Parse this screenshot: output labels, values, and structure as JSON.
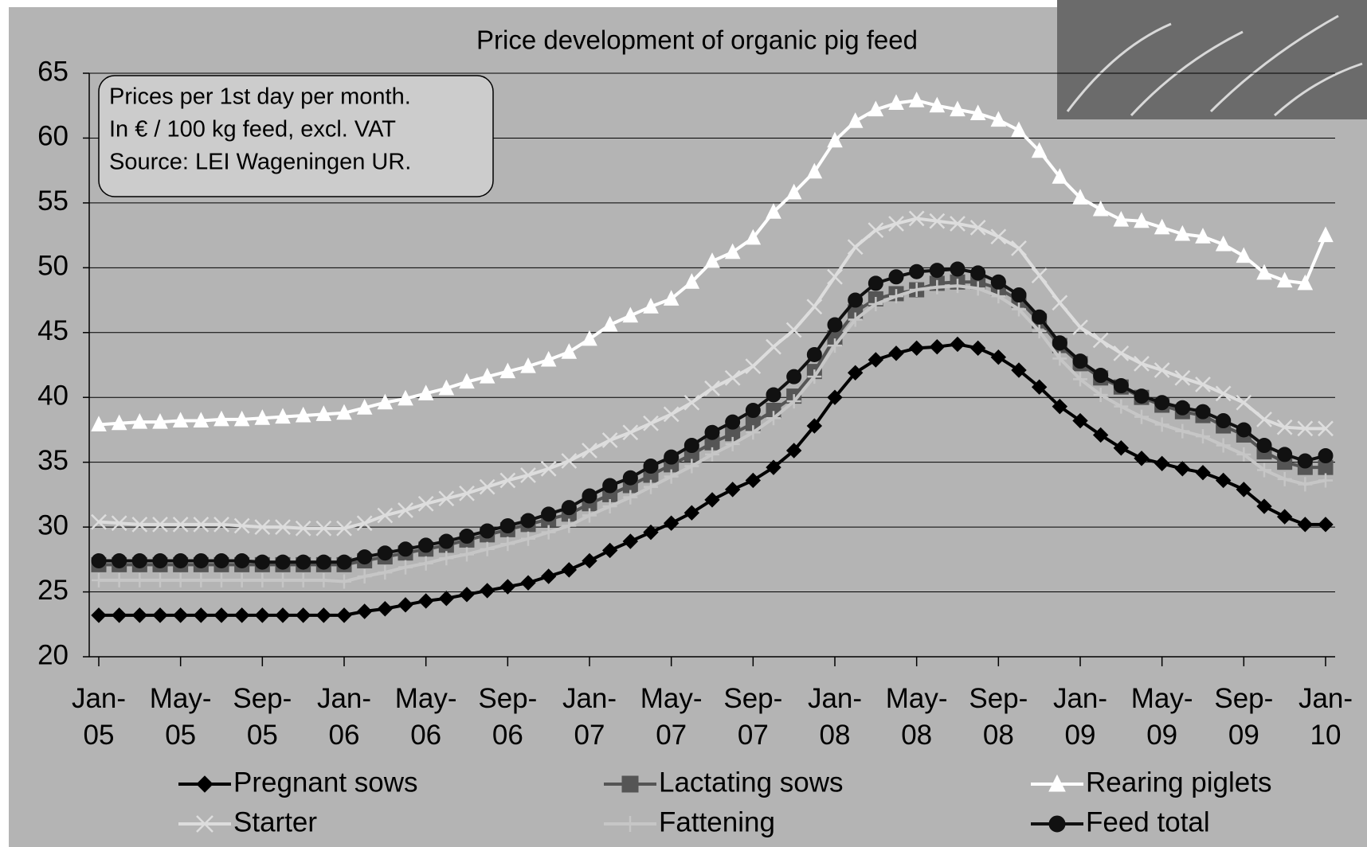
{
  "chart_data": {
    "type": "line",
    "title": "Price development of organic pig feed",
    "note": [
      "Prices per 1st day per month.",
      "In € / 100 kg feed, excl. VAT",
      "Source: LEI Wageningen UR."
    ],
    "categories": [
      "Jan-05",
      null,
      null,
      null,
      "May-05",
      null,
      null,
      null,
      "Sep-05",
      null,
      null,
      null,
      "Jan-06",
      null,
      null,
      null,
      "May-06",
      null,
      null,
      null,
      "Sep-06",
      null,
      null,
      null,
      "Jan-07",
      null,
      null,
      null,
      "May-07",
      null,
      null,
      null,
      "Sep-07",
      null,
      null,
      null,
      "Jan-08",
      null,
      null,
      null,
      "May-08",
      null,
      null,
      null,
      "Sep-08",
      null,
      null,
      null,
      "Jan-09",
      null,
      null,
      null,
      "May-09",
      null,
      null,
      null,
      "Sep-09",
      null,
      null,
      null,
      "Jan-10"
    ],
    "ylim": [
      20,
      65
    ],
    "yticks": [
      20,
      25,
      30,
      35,
      40,
      45,
      50,
      55,
      60,
      65
    ],
    "grid": true,
    "series": [
      {
        "name": "Pregnant sows",
        "color": "#000000",
        "marker": "diamond",
        "values": [
          23.2,
          23.2,
          23.2,
          23.2,
          23.2,
          23.2,
          23.2,
          23.2,
          23.2,
          23.2,
          23.2,
          23.2,
          23.2,
          23.5,
          23.7,
          24.0,
          24.3,
          24.5,
          24.8,
          25.1,
          25.4,
          25.7,
          26.2,
          26.7,
          27.4,
          28.2,
          28.9,
          29.6,
          30.3,
          31.1,
          32.1,
          32.9,
          33.6,
          34.6,
          35.9,
          37.8,
          40.0,
          41.9,
          42.9,
          43.4,
          43.8,
          43.9,
          44.1,
          43.8,
          43.1,
          42.1,
          40.8,
          39.3,
          38.2,
          37.1,
          36.1,
          35.3,
          34.9,
          34.5,
          34.2,
          33.6,
          32.9,
          31.6,
          30.8,
          30.2,
          30.2
        ]
      },
      {
        "name": "Lactating sows",
        "color": "#555555",
        "marker": "square",
        "values": [
          27.1,
          27.1,
          27.1,
          27.1,
          27.1,
          27.1,
          27.1,
          27.1,
          27.1,
          27.1,
          27.1,
          27.1,
          27.1,
          27.4,
          27.7,
          28.0,
          28.3,
          28.6,
          29.0,
          29.4,
          29.8,
          30.2,
          30.6,
          31.0,
          31.8,
          32.5,
          33.2,
          34.0,
          34.8,
          35.6,
          36.5,
          37.2,
          38.0,
          39.0,
          40.1,
          42.0,
          44.6,
          46.6,
          47.6,
          48.0,
          48.3,
          48.8,
          48.9,
          48.9,
          48.4,
          47.5,
          45.9,
          44.0,
          42.6,
          41.5,
          40.8,
          40.0,
          39.4,
          38.9,
          38.6,
          37.8,
          37.1,
          35.8,
          35.0,
          34.6,
          34.6
        ]
      },
      {
        "name": "Rearing piglets",
        "color": "#ffffff",
        "marker": "triangle",
        "values": [
          37.9,
          38.0,
          38.1,
          38.1,
          38.2,
          38.2,
          38.3,
          38.3,
          38.4,
          38.5,
          38.6,
          38.7,
          38.8,
          39.2,
          39.6,
          39.9,
          40.3,
          40.7,
          41.2,
          41.6,
          42.0,
          42.4,
          42.9,
          43.5,
          44.5,
          45.6,
          46.3,
          47.0,
          47.6,
          48.9,
          50.5,
          51.2,
          52.3,
          54.3,
          55.8,
          57.4,
          59.8,
          61.3,
          62.2,
          62.7,
          62.9,
          62.5,
          62.2,
          61.9,
          61.4,
          60.6,
          59.0,
          57.0,
          55.4,
          54.5,
          53.7,
          53.6,
          53.1,
          52.6,
          52.4,
          51.8,
          50.9,
          49.6,
          49.0,
          48.8,
          52.5
        ]
      },
      {
        "name": "Starter",
        "color": "#dddddd",
        "marker": "x",
        "values": [
          30.4,
          30.3,
          30.2,
          30.2,
          30.2,
          30.2,
          30.2,
          30.1,
          30.0,
          30.0,
          29.9,
          29.9,
          29.9,
          30.3,
          30.9,
          31.3,
          31.8,
          32.2,
          32.6,
          33.1,
          33.6,
          34.0,
          34.5,
          35.1,
          35.9,
          36.7,
          37.3,
          38.0,
          38.7,
          39.6,
          40.7,
          41.5,
          42.4,
          43.9,
          45.2,
          47.0,
          49.3,
          51.6,
          52.9,
          53.4,
          53.8,
          53.6,
          53.4,
          53.1,
          52.4,
          51.5,
          49.4,
          47.3,
          45.4,
          44.4,
          43.4,
          42.6,
          42.1,
          41.5,
          41.0,
          40.3,
          39.6,
          38.3,
          37.7,
          37.6,
          37.6
        ]
      },
      {
        "name": "Fattening",
        "color": "#c6c6c6",
        "marker": "plus",
        "values": [
          25.9,
          25.9,
          25.9,
          25.9,
          25.9,
          25.9,
          25.9,
          25.9,
          25.9,
          25.9,
          25.9,
          25.9,
          25.8,
          26.2,
          26.5,
          26.9,
          27.2,
          27.6,
          27.9,
          28.3,
          28.7,
          29.1,
          29.6,
          30.1,
          30.9,
          31.6,
          32.3,
          33.1,
          33.9,
          34.7,
          35.6,
          36.4,
          37.3,
          38.4,
          39.7,
          41.6,
          44.0,
          46.0,
          47.2,
          47.8,
          48.3,
          48.5,
          48.6,
          48.4,
          47.8,
          46.8,
          45.1,
          43.0,
          41.4,
          40.2,
          39.3,
          38.5,
          37.9,
          37.4,
          37.0,
          36.3,
          35.6,
          34.4,
          33.7,
          33.3,
          33.6
        ]
      },
      {
        "name": "Feed total",
        "color": "#111111",
        "marker": "circle",
        "values": [
          27.4,
          27.4,
          27.4,
          27.4,
          27.4,
          27.4,
          27.4,
          27.4,
          27.3,
          27.3,
          27.3,
          27.3,
          27.3,
          27.7,
          28.0,
          28.3,
          28.6,
          28.9,
          29.3,
          29.7,
          30.1,
          30.5,
          31.0,
          31.5,
          32.4,
          33.2,
          33.8,
          34.7,
          35.4,
          36.3,
          37.3,
          38.1,
          39.0,
          40.2,
          41.6,
          43.3,
          45.6,
          47.5,
          48.8,
          49.3,
          49.7,
          49.8,
          49.9,
          49.6,
          48.9,
          47.9,
          46.2,
          44.2,
          42.8,
          41.7,
          40.9,
          40.1,
          39.6,
          39.2,
          38.9,
          38.2,
          37.5,
          36.3,
          35.6,
          35.1,
          35.5
        ]
      }
    ]
  }
}
